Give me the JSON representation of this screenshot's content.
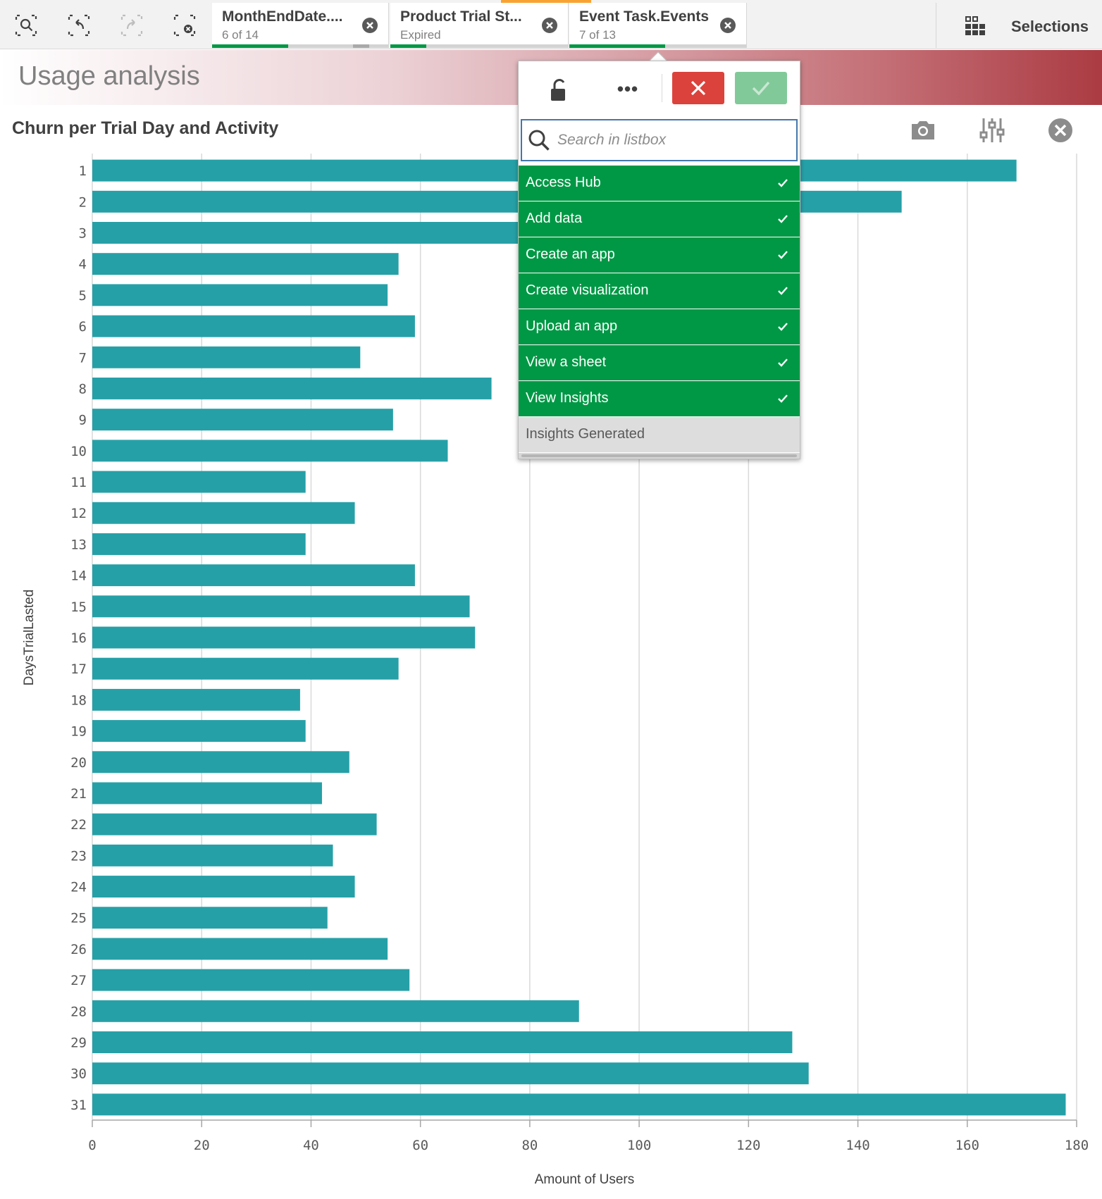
{
  "toolbar": {
    "tools": [
      {
        "icon": "smart-search-icon"
      },
      {
        "icon": "step-back-icon"
      },
      {
        "icon": "step-forward-icon"
      },
      {
        "icon": "clear-all-selections-icon"
      }
    ],
    "selection_tabs": [
      {
        "field": "MonthEndDate....",
        "state": "6 of 14",
        "selected_fraction": 0.43
      },
      {
        "field": "Product Trial St...",
        "state": "Expired",
        "selected_fraction": 0.2
      },
      {
        "field": "Event Task.Events",
        "state": "7 of 13",
        "selected_fraction": 0.54
      }
    ],
    "selections_label": "Selections",
    "colors": {
      "selected": "#009845",
      "alternative": "#a9a9a9",
      "active_marker": "#f8a331"
    }
  },
  "sheet": {
    "title": "Usage analysis"
  },
  "chart": {
    "title": "Churn per Trial Day and Activity",
    "icons": [
      "camera-icon",
      "exploration-menu-icon",
      "close-icon"
    ]
  },
  "chart_data": {
    "type": "bar",
    "orientation": "horizontal",
    "title": "Churn per Trial Day and Activity",
    "xlabel": "Amount of Users",
    "ylabel": "DaysTrialLasted",
    "xlim": [
      0,
      180
    ],
    "xticks": [
      0,
      20,
      40,
      60,
      80,
      100,
      120,
      140,
      160,
      180
    ],
    "grid": true,
    "color": "#26a0a7",
    "categories": [
      "1",
      "2",
      "3",
      "4",
      "5",
      "6",
      "7",
      "8",
      "9",
      "10",
      "11",
      "12",
      "13",
      "14",
      "15",
      "16",
      "17",
      "18",
      "19",
      "20",
      "21",
      "22",
      "23",
      "24",
      "25",
      "26",
      "27",
      "28",
      "29",
      "30",
      "31"
    ],
    "values": [
      169,
      148,
      100,
      56,
      54,
      59,
      49,
      73,
      55,
      65,
      39,
      48,
      39,
      59,
      69,
      70,
      56,
      38,
      39,
      47,
      42,
      52,
      44,
      48,
      43,
      54,
      58,
      89,
      128,
      131,
      178
    ]
  },
  "listbox": {
    "search_placeholder": "Search in listbox",
    "icons": {
      "lock": "unlock-icon",
      "more": "more-icon",
      "cancel": "cancel-icon",
      "confirm": "confirm-icon"
    },
    "more_label": "•••",
    "items": [
      {
        "label": "Access Hub",
        "state": "selected"
      },
      {
        "label": "Add data",
        "state": "selected"
      },
      {
        "label": "Create an app",
        "state": "selected"
      },
      {
        "label": "Create visualization",
        "state": "selected"
      },
      {
        "label": "Upload an app",
        "state": "selected"
      },
      {
        "label": "View a sheet",
        "state": "selected"
      },
      {
        "label": "View Insights",
        "state": "selected"
      },
      {
        "label": "Insights Generated",
        "state": "alternative"
      }
    ],
    "colors": {
      "selected": "#009845",
      "alternative": "#dddddd",
      "cancel": "#dc423c",
      "confirm": "#82c99a"
    }
  }
}
